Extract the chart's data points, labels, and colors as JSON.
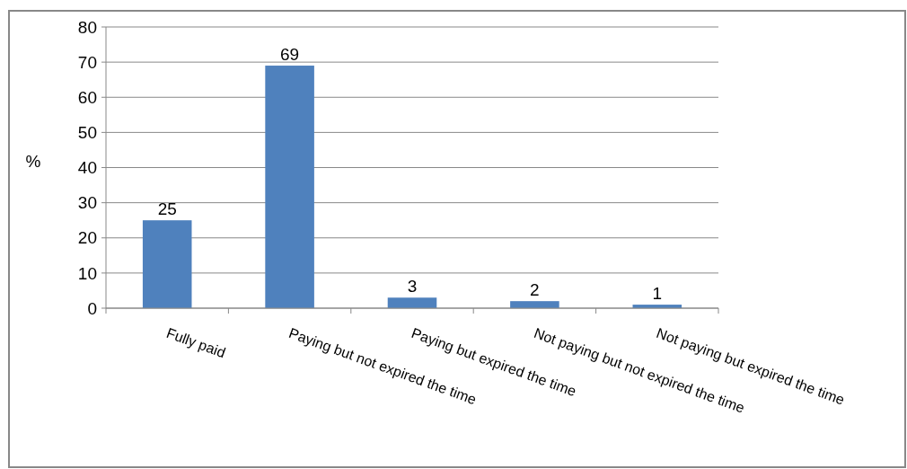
{
  "chart_data": {
    "type": "bar",
    "ylabel": "%",
    "categories": [
      "Fully paid",
      "Paying but not expired the time",
      "Paying but expired the time",
      "Not paying but not expired the time",
      "Not paying but expired the time"
    ],
    "values": [
      25,
      69,
      3,
      2,
      1
    ],
    "color": "#4f81bd",
    "ylim": [
      0,
      80
    ],
    "yticks": [
      0,
      10,
      20,
      30,
      40,
      50,
      60,
      70,
      80
    ],
    "grid": "y",
    "data_labels": true
  }
}
